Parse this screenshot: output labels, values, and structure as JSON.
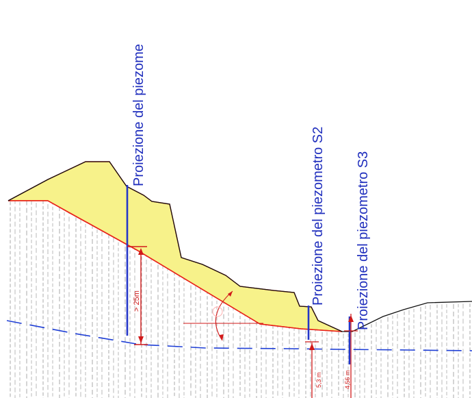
{
  "labels": {
    "piezo_1": "Proiezione del piezome",
    "piezo_2": "Proiezione del piezometro S2",
    "piezo_3": "Proiezione del piezometro S3"
  },
  "dimensions": {
    "depth_1": "> 25m",
    "depth_2": "5,3 m",
    "depth_3": "4,56 m"
  },
  "colors": {
    "slide_fill": "#f7f28a",
    "slide_outline": "#e8231a",
    "water_table": "#1f3fd6",
    "piezometer": "#2436c9",
    "ground_line": "#111111",
    "hatch": "#a8a8a8"
  }
}
